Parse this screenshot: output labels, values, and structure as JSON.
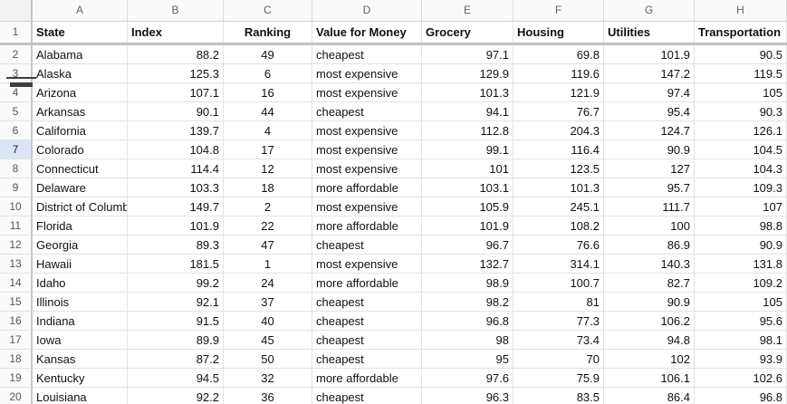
{
  "sheet": {
    "column_letters": [
      "A",
      "B",
      "C",
      "D",
      "E",
      "F",
      "G",
      "H"
    ],
    "header_row": {
      "n": "1",
      "cells": [
        "State",
        "Index",
        "Ranking",
        "Value for Money",
        "Grocery",
        "Housing",
        "Utilities",
        "Transportation"
      ]
    },
    "rows": [
      {
        "n": "2",
        "cells": [
          "Alabama",
          "88.2",
          "49",
          "cheapest",
          "97.1",
          "69.8",
          "101.9",
          "90.5"
        ]
      },
      {
        "n": "3",
        "cells": [
          "Alaska",
          "125.3",
          "6",
          "most expensive",
          "129.9",
          "119.6",
          "147.2",
          "119.5"
        ]
      },
      {
        "n": "4",
        "cells": [
          "Arizona",
          "107.1",
          "16",
          "most expensive",
          "101.3",
          "121.9",
          "97.4",
          "105"
        ]
      },
      {
        "n": "5",
        "cells": [
          "Arkansas",
          "90.1",
          "44",
          "cheapest",
          "94.1",
          "76.7",
          "95.4",
          "90.3"
        ]
      },
      {
        "n": "6",
        "cells": [
          "California",
          "139.7",
          "4",
          "most expensive",
          "112.8",
          "204.3",
          "124.7",
          "126.1"
        ]
      },
      {
        "n": "7",
        "cells": [
          "Colorado",
          "104.8",
          "17",
          "most expensive",
          "99.1",
          "116.4",
          "90.9",
          "104.5"
        ],
        "selected": true
      },
      {
        "n": "8",
        "cells": [
          "Connecticut",
          "114.4",
          "12",
          "most expensive",
          "101",
          "123.5",
          "127",
          "104.3"
        ]
      },
      {
        "n": "9",
        "cells": [
          "Delaware",
          "103.3",
          "18",
          "more affordable",
          "103.1",
          "101.3",
          "95.7",
          "109.3"
        ]
      },
      {
        "n": "10",
        "cells": [
          "District of Columbia",
          "149.7",
          "2",
          "most expensive",
          "105.9",
          "245.1",
          "111.7",
          "107"
        ]
      },
      {
        "n": "11",
        "cells": [
          "Florida",
          "101.9",
          "22",
          "more affordable",
          "101.9",
          "108.2",
          "100",
          "98.8"
        ]
      },
      {
        "n": "12",
        "cells": [
          "Georgia",
          "89.3",
          "47",
          "cheapest",
          "96.7",
          "76.6",
          "86.9",
          "90.9"
        ]
      },
      {
        "n": "13",
        "cells": [
          "Hawaii",
          "181.5",
          "1",
          "most expensive",
          "132.7",
          "314.1",
          "140.3",
          "131.8"
        ]
      },
      {
        "n": "14",
        "cells": [
          "Idaho",
          "99.2",
          "24",
          "more affordable",
          "98.9",
          "100.7",
          "82.7",
          "109.2"
        ]
      },
      {
        "n": "15",
        "cells": [
          "Illinois",
          "92.1",
          "37",
          "cheapest",
          "98.2",
          "81",
          "90.9",
          "105"
        ]
      },
      {
        "n": "16",
        "cells": [
          "Indiana",
          "91.5",
          "40",
          "cheapest",
          "96.8",
          "77.3",
          "106.2",
          "95.6"
        ]
      },
      {
        "n": "17",
        "cells": [
          "Iowa",
          "89.9",
          "45",
          "cheapest",
          "98",
          "73.4",
          "94.8",
          "98.1"
        ]
      },
      {
        "n": "18",
        "cells": [
          "Kansas",
          "87.2",
          "50",
          "cheapest",
          "95",
          "70",
          "102",
          "93.9"
        ]
      },
      {
        "n": "19",
        "cells": [
          "Kentucky",
          "94.5",
          "32",
          "more affordable",
          "97.6",
          "75.9",
          "106.1",
          "102.6"
        ]
      },
      {
        "n": "20",
        "cells": [
          "Louisiana",
          "92.2",
          "36",
          "cheapest",
          "96.3",
          "83.5",
          "86.4",
          "96.8"
        ]
      }
    ],
    "selected_row_header": "7",
    "frozen_divider_below_row": "1"
  },
  "colors": {
    "grid_line": "#e2e2e2",
    "header_strip_bg": "#fafafa",
    "header_strip_border": "#c7c7c7",
    "frozen_divider": "#c2c2c2",
    "selected_row_header_bg": "#dce4f7",
    "cell_text": "#111111",
    "header_strip_text": "#5f6368",
    "resize_handle": "#3f3f3f"
  }
}
